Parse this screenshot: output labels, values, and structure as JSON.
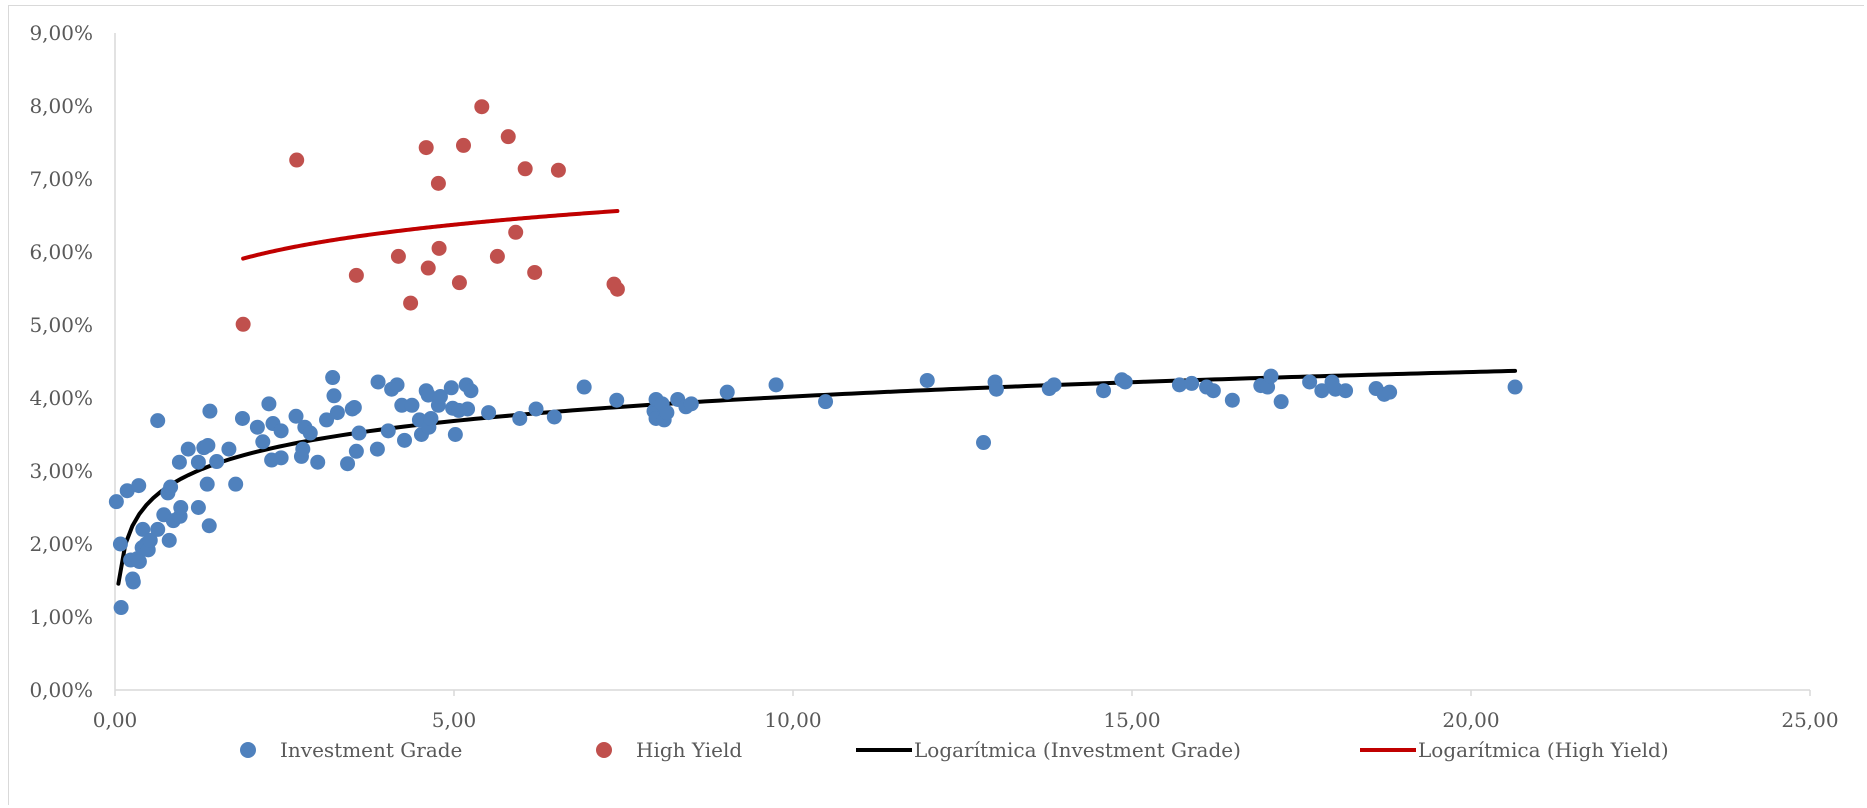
{
  "chart_data": {
    "type": "scatter",
    "title": "",
    "xlabel": "",
    "ylabel": "",
    "xlim": [
      0,
      25
    ],
    "ylim": [
      0,
      0.09
    ],
    "x_ticks": [
      "0,00",
      "5,00",
      "10,00",
      "15,00",
      "20,00",
      "25,00"
    ],
    "y_ticks": [
      "0,00%",
      "1,00%",
      "2,00%",
      "3,00%",
      "4,00%",
      "5,00%",
      "6,00%",
      "7,00%",
      "8,00%",
      "9,00%"
    ],
    "grid": false,
    "legend_position": "bottom",
    "series": [
      {
        "name": "Investment Grade",
        "kind": "points",
        "color": "#4f81bd",
        "points": [
          [
            0.02,
            0.0258
          ],
          [
            0.08,
            0.02
          ],
          [
            0.09,
            0.0113
          ],
          [
            0.18,
            0.0273
          ],
          [
            0.23,
            0.0178
          ],
          [
            0.27,
            0.0148
          ],
          [
            0.26,
            0.0152
          ],
          [
            0.33,
            0.018
          ],
          [
            0.35,
            0.028
          ],
          [
            0.36,
            0.0176
          ],
          [
            0.4,
            0.0195
          ],
          [
            0.41,
            0.022
          ],
          [
            0.46,
            0.02
          ],
          [
            0.49,
            0.0192
          ],
          [
            0.52,
            0.0205
          ],
          [
            0.63,
            0.0369
          ],
          [
            0.63,
            0.022
          ],
          [
            0.72,
            0.024
          ],
          [
            0.78,
            0.027
          ],
          [
            0.8,
            0.0205
          ],
          [
            0.82,
            0.0278
          ],
          [
            0.86,
            0.0232
          ],
          [
            0.95,
            0.0312
          ],
          [
            0.96,
            0.0238
          ],
          [
            0.97,
            0.025
          ],
          [
            1.08,
            0.033
          ],
          [
            1.23,
            0.025
          ],
          [
            1.23,
            0.0312
          ],
          [
            1.31,
            0.0332
          ],
          [
            1.36,
            0.0282
          ],
          [
            1.37,
            0.0335
          ],
          [
            1.39,
            0.0225
          ],
          [
            1.4,
            0.0382
          ],
          [
            1.5,
            0.0313
          ],
          [
            1.68,
            0.033
          ],
          [
            1.78,
            0.0282
          ],
          [
            1.88,
            0.0372
          ],
          [
            2.1,
            0.036
          ],
          [
            2.18,
            0.034
          ],
          [
            2.27,
            0.0392
          ],
          [
            2.31,
            0.0315
          ],
          [
            2.33,
            0.0365
          ],
          [
            2.45,
            0.0318
          ],
          [
            2.45,
            0.0355
          ],
          [
            2.67,
            0.0375
          ],
          [
            2.75,
            0.032
          ],
          [
            2.77,
            0.033
          ],
          [
            2.8,
            0.036
          ],
          [
            2.88,
            0.0352
          ],
          [
            2.99,
            0.0312
          ],
          [
            3.12,
            0.037
          ],
          [
            3.21,
            0.0428
          ],
          [
            3.23,
            0.0403
          ],
          [
            3.28,
            0.038
          ],
          [
            3.43,
            0.031
          ],
          [
            3.5,
            0.0385
          ],
          [
            3.53,
            0.0387
          ],
          [
            3.56,
            0.0327
          ],
          [
            3.6,
            0.0352
          ],
          [
            3.87,
            0.033
          ],
          [
            3.88,
            0.0422
          ],
          [
            4.03,
            0.0355
          ],
          [
            4.08,
            0.0412
          ],
          [
            4.16,
            0.0418
          ],
          [
            4.23,
            0.039
          ],
          [
            4.27,
            0.0342
          ],
          [
            4.38,
            0.039
          ],
          [
            4.49,
            0.037
          ],
          [
            4.52,
            0.035
          ],
          [
            4.59,
            0.041
          ],
          [
            4.62,
            0.0404
          ],
          [
            4.63,
            0.036
          ],
          [
            4.66,
            0.0372
          ],
          [
            4.77,
            0.039
          ],
          [
            4.8,
            0.0402
          ],
          [
            4.96,
            0.0414
          ],
          [
            4.98,
            0.0386
          ],
          [
            5.02,
            0.035
          ],
          [
            5.07,
            0.0383
          ],
          [
            5.18,
            0.0418
          ],
          [
            5.2,
            0.0385
          ],
          [
            5.25,
            0.041
          ],
          [
            5.51,
            0.038
          ],
          [
            5.97,
            0.0372
          ],
          [
            6.21,
            0.0385
          ],
          [
            6.48,
            0.0374
          ],
          [
            6.92,
            0.0415
          ],
          [
            7.4,
            0.0397
          ],
          [
            7.95,
            0.0382
          ],
          [
            7.98,
            0.0372
          ],
          [
            7.98,
            0.0398
          ],
          [
            8.07,
            0.0392
          ],
          [
            8.1,
            0.037
          ],
          [
            8.14,
            0.038
          ],
          [
            8.3,
            0.0398
          ],
          [
            8.42,
            0.0388
          ],
          [
            8.5,
            0.0392
          ],
          [
            9.03,
            0.0408
          ],
          [
            9.75,
            0.0418
          ],
          [
            10.48,
            0.0395
          ],
          [
            11.98,
            0.0424
          ],
          [
            12.81,
            0.0339
          ],
          [
            12.98,
            0.0422
          ],
          [
            13.0,
            0.0412
          ],
          [
            13.78,
            0.0413
          ],
          [
            13.85,
            0.0418
          ],
          [
            14.58,
            0.041
          ],
          [
            14.85,
            0.0425
          ],
          [
            14.9,
            0.0422
          ],
          [
            15.7,
            0.0418
          ],
          [
            15.88,
            0.042
          ],
          [
            16.1,
            0.0415
          ],
          [
            16.2,
            0.041
          ],
          [
            16.48,
            0.0397
          ],
          [
            16.9,
            0.0417
          ],
          [
            17.0,
            0.0415
          ],
          [
            17.05,
            0.043
          ],
          [
            17.2,
            0.0395
          ],
          [
            17.62,
            0.0422
          ],
          [
            17.8,
            0.041
          ],
          [
            17.95,
            0.0422
          ],
          [
            18.0,
            0.0412
          ],
          [
            18.15,
            0.041
          ],
          [
            18.6,
            0.0413
          ],
          [
            18.72,
            0.0405
          ],
          [
            18.8,
            0.0408
          ],
          [
            20.65,
            0.0415
          ]
        ]
      },
      {
        "name": "High Yield",
        "kind": "points",
        "color": "#c0504d",
        "points": [
          [
            1.89,
            0.0501
          ],
          [
            2.68,
            0.0726
          ],
          [
            3.56,
            0.0568
          ],
          [
            4.18,
            0.0594
          ],
          [
            4.36,
            0.053
          ],
          [
            4.59,
            0.0743
          ],
          [
            4.62,
            0.0578
          ],
          [
            4.77,
            0.0694
          ],
          [
            4.78,
            0.0605
          ],
          [
            5.08,
            0.0558
          ],
          [
            5.14,
            0.0746
          ],
          [
            5.41,
            0.0799
          ],
          [
            5.64,
            0.0594
          ],
          [
            5.8,
            0.0758
          ],
          [
            5.91,
            0.0627
          ],
          [
            6.05,
            0.0714
          ],
          [
            6.19,
            0.0572
          ],
          [
            6.54,
            0.0712
          ],
          [
            7.36,
            0.0556
          ],
          [
            7.41,
            0.0549
          ]
        ]
      },
      {
        "name": "Logarítmica (Investment Grade)",
        "kind": "trendline",
        "color": "#000000",
        "x_range": [
          0.05,
          20.65
        ]
      },
      {
        "name": "Logarítmica (High Yield)",
        "kind": "trendline",
        "color": "#c00000",
        "x_range": [
          1.89,
          7.41
        ]
      }
    ]
  }
}
